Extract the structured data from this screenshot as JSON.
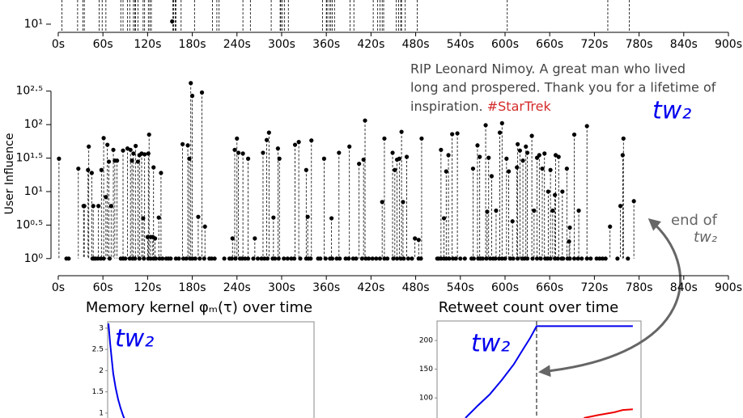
{
  "chart_data": [
    {
      "type": "stem",
      "log_scale": true,
      "color": "#000000",
      "xlim": [
        -8,
        900
      ],
      "ylim": [
        8,
        22.8
      ],
      "xticks": [
        {
          "value": 0,
          "label": "0s"
        },
        {
          "value": 60,
          "label": "60s"
        },
        {
          "value": 120,
          "label": "120s"
        },
        {
          "value": 180,
          "label": "180s"
        },
        {
          "value": 240,
          "label": "240s"
        },
        {
          "value": 300,
          "label": "300s"
        },
        {
          "value": 360,
          "label": "360s"
        },
        {
          "value": 420,
          "label": "420s"
        },
        {
          "value": 480,
          "label": "480s"
        },
        {
          "value": 540,
          "label": "540s"
        },
        {
          "value": 600,
          "label": "600s"
        },
        {
          "value": 660,
          "label": "660s"
        },
        {
          "value": 720,
          "label": "720s"
        },
        {
          "value": 780,
          "label": "780s"
        },
        {
          "value": 840,
          "label": "840s"
        },
        {
          "value": 900,
          "label": "900s"
        }
      ],
      "yticks": [
        {
          "value": 10,
          "label": "10¹"
        }
      ],
      "series": [
        {
          "x": [
            5,
            26,
            33,
            35,
            55,
            59,
            64,
            84,
            87,
            93,
            96,
            101,
            103,
            104,
            107,
            114,
            116,
            121,
            123,
            125,
            154,
            155,
            157,
            158,
            165,
            183,
            207,
            213,
            216,
            248,
            258,
            286,
            298,
            299,
            301,
            304,
            309,
            355,
            360,
            361,
            364,
            366,
            368,
            371,
            392,
            397,
            423,
            429,
            432,
            435,
            437,
            454,
            457,
            460,
            461,
            466,
            482,
            603,
            738,
            767
          ],
          "values": [
            null,
            null,
            null,
            null,
            null,
            null,
            null,
            null,
            null,
            null,
            null,
            null,
            null,
            null,
            null,
            null,
            null,
            null,
            null,
            null,
            null,
            null,
            null,
            null,
            null,
            null,
            null,
            null,
            null,
            null,
            null,
            null,
            null,
            null,
            null,
            null,
            null,
            null,
            null,
            null,
            null,
            null,
            null,
            null,
            null,
            null,
            null,
            null,
            null,
            null,
            null,
            null,
            null,
            null,
            null,
            null,
            null,
            null,
            null,
            null
          ]
        },
        {
          "x": [
            153
          ],
          "values": [
            11
          ]
        }
      ]
    },
    {
      "type": "stem",
      "log_scale": true,
      "color": "#000000",
      "ylabel": "User Influence",
      "xlim": [
        -8,
        900
      ],
      "ylim": [
        0.89,
        450
      ],
      "xticks": [
        {
          "value": 0,
          "label": "0s"
        },
        {
          "value": 60,
          "label": "60s"
        },
        {
          "value": 120,
          "label": "120s"
        },
        {
          "value": 180,
          "label": "180s"
        },
        {
          "value": 240,
          "label": "240s"
        },
        {
          "value": 300,
          "label": "300s"
        },
        {
          "value": 360,
          "label": "360s"
        },
        {
          "value": 420,
          "label": "420s"
        },
        {
          "value": 480,
          "label": "480s"
        },
        {
          "value": 540,
          "label": "540s"
        },
        {
          "value": 600,
          "label": "600s"
        },
        {
          "value": 660,
          "label": "660s"
        },
        {
          "value": 720,
          "label": "720s"
        },
        {
          "value": 780,
          "label": "780s"
        },
        {
          "value": 840,
          "label": "840s"
        },
        {
          "value": 900,
          "label": "900s"
        }
      ],
      "yticks": [
        {
          "value": 1,
          "label": "10⁰"
        },
        {
          "value": 3.162,
          "label": "10⁰·⁵"
        },
        {
          "value": 10,
          "label": "10¹"
        },
        {
          "value": 31.62,
          "label": "10¹·⁵"
        },
        {
          "value": 100,
          "label": "10²"
        },
        {
          "value": 316.2,
          "label": "10²·⁵"
        }
      ],
      "series": [
        {
          "x": [
            1,
            27,
            34,
            35,
            40,
            41,
            45,
            47,
            54,
            58,
            61,
            64,
            66,
            68,
            71,
            74,
            76,
            79,
            87,
            93,
            97,
            99,
            101,
            104,
            107,
            109,
            112,
            114,
            116,
            120,
            121,
            122,
            124,
            127,
            128,
            130,
            135,
            138,
            167,
            174,
            176,
            178,
            180,
            188,
            193,
            197,
            234,
            237,
            240,
            242,
            248,
            255,
            264,
            275,
            280,
            283,
            289,
            295,
            297,
            318,
            323,
            333,
            335,
            340,
            357,
            367,
            377,
            391,
            404,
            410,
            412,
            435,
            438,
            449,
            452,
            455,
            458,
            461,
            463,
            468,
            479,
            484,
            488,
            514,
            518,
            521,
            524,
            529,
            536,
            557,
            563,
            566,
            574,
            576,
            578,
            582,
            588,
            593,
            596,
            602,
            605,
            610,
            616,
            617,
            620,
            624,
            628,
            630,
            636,
            639,
            643,
            646,
            650,
            653,
            658,
            661,
            664,
            667,
            668,
            672,
            677,
            683,
            686,
            687,
            693,
            699,
            710,
            741,
            755,
            758,
            759,
            773
          ],
          "values": [
            31,
            22,
            6.1,
            6.1,
            21,
            47,
            19,
            6.1,
            6.1,
            21,
            63,
            8.3,
            50,
            28,
            6.1,
            42,
            29,
            29,
            41,
            44,
            42,
            29,
            37,
            48,
            28,
            35,
            37,
            4.0,
            36,
            2.1,
            37,
            71,
            2.1,
            2.1,
            23,
            2.0,
            4.1,
            19,
            51,
            49,
            31,
            417,
            269,
            4.2,
            302,
            3.0,
            2.0,
            42,
            62,
            38,
            37,
            31,
            2.0,
            38,
            59,
            76,
            4.1,
            44,
            31,
            50,
            55,
            21,
            4.2,
            58,
            31,
            4.0,
            38,
            47,
            26,
            30,
            115,
            7.0,
            62,
            38,
            21,
            30,
            31,
            78,
            7.0,
            33,
            2.0,
            1.9,
            62,
            42,
            4.0,
            20,
            35,
            72,
            74,
            22,
            49,
            33,
            98,
            5.0,
            32,
            17,
            5.2,
            76,
            105,
            31,
            20,
            3.6,
            23,
            51,
            41,
            29,
            47,
            38,
            68,
            5.2,
            32,
            35,
            22,
            37,
            10,
            21,
            5.2,
            8.9,
            35,
            33,
            10,
            22,
            1.8,
            2.9,
            71,
            5.2,
            95,
            3.0,
            6.1,
            35,
            62,
            7.2
          ]
        },
        {
          "x": [
            11,
            14,
            46,
            48,
            50,
            53,
            57,
            61,
            69,
            84,
            87,
            90,
            96,
            100,
            103,
            109,
            115,
            121,
            124,
            128,
            131,
            136,
            140,
            145,
            148,
            151,
            158,
            162,
            168,
            172,
            177,
            180,
            184,
            190,
            196,
            203,
            206,
            210,
            223,
            230,
            233,
            238,
            244,
            247,
            251,
            255,
            262,
            268,
            273,
            277,
            281,
            288,
            291,
            296,
            303,
            308,
            313,
            317,
            325,
            333,
            336,
            339,
            349,
            352,
            359,
            365,
            368,
            374,
            378,
            386,
            390,
            396,
            400,
            408,
            413,
            417,
            422,
            427,
            432,
            438,
            442,
            450,
            455,
            460,
            464,
            470,
            475,
            484,
            487,
            509,
            511,
            514,
            518,
            521,
            525,
            530,
            534,
            540,
            546,
            555,
            558,
            564,
            567,
            570,
            575,
            580,
            584,
            587,
            592,
            596,
            600,
            607,
            611,
            617,
            623,
            626,
            630,
            637,
            643,
            648,
            654,
            657,
            661,
            667,
            671,
            676,
            678,
            684,
            687,
            693,
            698,
            703,
            710,
            715,
            723,
            727,
            731,
            735,
            751,
            765
          ],
          "values": [
            1,
            1,
            1,
            1,
            1,
            1,
            1,
            1,
            1,
            1,
            1,
            1,
            1,
            1,
            1,
            1,
            1,
            1,
            1,
            1,
            1,
            1,
            1,
            1,
            1,
            1,
            1,
            1,
            1,
            1,
            1,
            1,
            1,
            1,
            1,
            1,
            1,
            1,
            1,
            1,
            1,
            1,
            1,
            1,
            1,
            1,
            1,
            1,
            1,
            1,
            1,
            1,
            1,
            1,
            1,
            1,
            1,
            1,
            1,
            1,
            1,
            1,
            1,
            1,
            1,
            1,
            1,
            1,
            1,
            1,
            1,
            1,
            1,
            1,
            1,
            1,
            1,
            1,
            1,
            1,
            1,
            1,
            1,
            1,
            1,
            1,
            1,
            1,
            1,
            1,
            1,
            1,
            1,
            1,
            1,
            1,
            1,
            1,
            1,
            1,
            1,
            1,
            1,
            1,
            1,
            1,
            1,
            1,
            1,
            1,
            1,
            1,
            1,
            1,
            1,
            1,
            1,
            1,
            1,
            1,
            1,
            1,
            1,
            1,
            1,
            1,
            1,
            1,
            1,
            1,
            1,
            1,
            1,
            1,
            1,
            1,
            1,
            1,
            1,
            1
          ]
        }
      ],
      "tweet": [
        "RIP Leonard Nimoy. A great man who lived",
        "long and prospered. Thank you for a lifetime of",
        "inspiration. "
      ],
      "hashtag": "#StarTrek",
      "label": "tw₂",
      "end_note": [
        "end of",
        "tw₂"
      ]
    },
    {
      "type": "line",
      "title": "Memory kernel φₘ(τ) over time",
      "label": "tw₂",
      "xlim": [
        0,
        100
      ],
      "ylim": [
        0.7,
        3.15
      ],
      "yticks": [
        1,
        1.5,
        2,
        2.5,
        3
      ],
      "series": [
        {
          "color": "#0000ee",
          "x": [
            0.4,
            1.2,
            2,
            2.7,
            3.9,
            5.1,
            6.3,
            7.5,
            8.6
          ],
          "values": [
            3.11,
            2.64,
            2.26,
            1.93,
            1.59,
            1.32,
            1.11,
            0.94,
            0.81
          ]
        }
      ]
    },
    {
      "type": "line",
      "title": "Retweet count over time",
      "label": "tw₂",
      "xlim": [
        0,
        100
      ],
      "ylim": [
        65,
        234
      ],
      "yticks": [
        100,
        150,
        200
      ],
      "vline_x": 48.8,
      "series": [
        {
          "color": "#0000ee",
          "x": [
            13.9,
            19.8,
            25.8,
            31.7,
            37.7,
            41.7,
            45.6,
            48.8,
            63.5,
            96
          ],
          "values": [
            65,
            86,
            106,
            131,
            159,
            182,
            204,
            225,
            225,
            225
          ]
        },
        {
          "color": "#ee0000",
          "x": [
            72,
            79,
            87,
            91,
            96
          ],
          "values": [
            65,
            70,
            75,
            79,
            80
          ]
        }
      ]
    }
  ]
}
